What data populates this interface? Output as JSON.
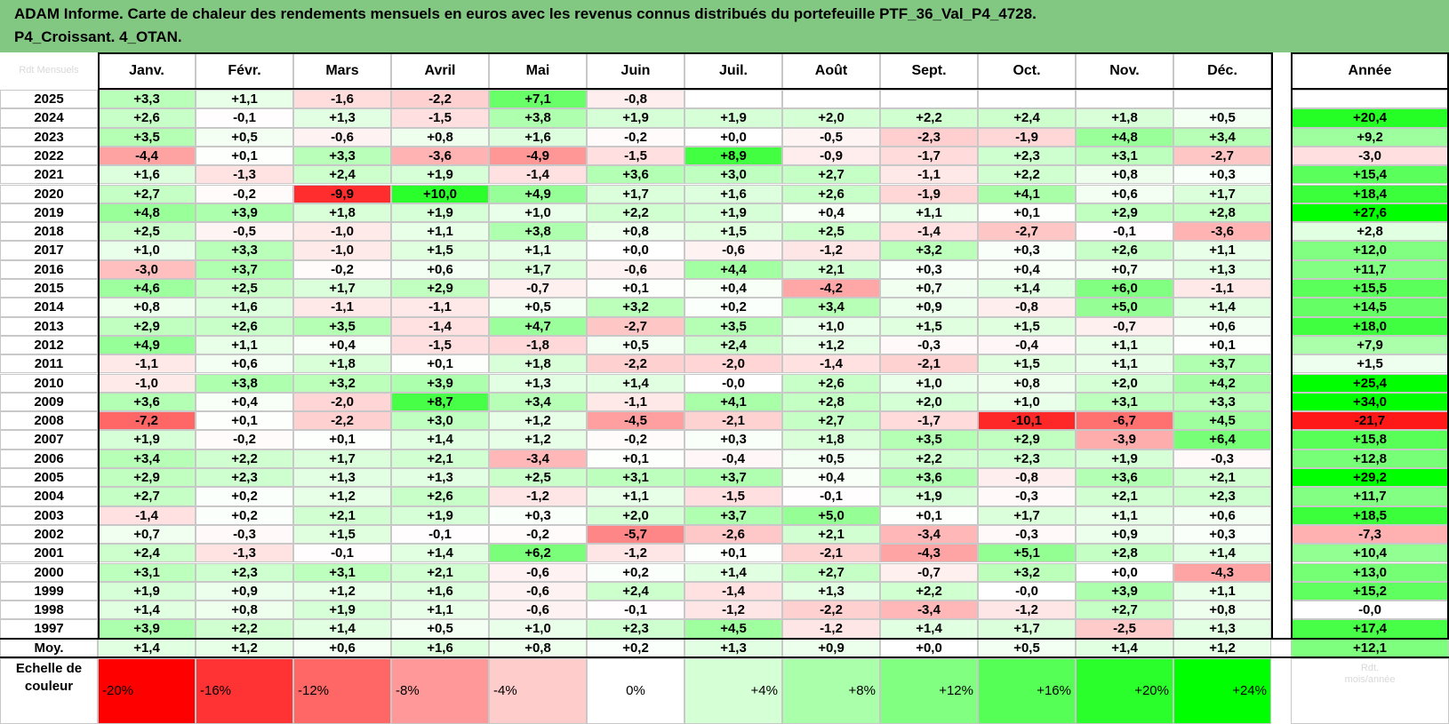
{
  "title": "ADAM Informe. Carte de chaleur des rendements mensuels en euros avec les revenus connus distribués du portefeuille PTF_36_Val_P4_4728.\nP4_Croissant. 4_OTAN.",
  "corner_label": "Rdt Mensuels",
  "months": [
    "Janv.",
    "Févr.",
    "Mars",
    "Avril",
    "Mai",
    "Juin",
    "Juil.",
    "Août",
    "Sept.",
    "Oct.",
    "Nov.",
    "Déc."
  ],
  "annual_header": "Année",
  "avg_label": "Moy.",
  "scale_label": "Echelle de\ncouleur",
  "scale_ghost": "Rdt.\nmois/année",
  "colors": {
    "title_bg": "#82c882",
    "negative": "#ff0000",
    "positive": "#00ff00",
    "neutral": "#ffffff"
  },
  "chart_data": {
    "type": "heatmap",
    "title": "ADAM Informe. Carte de chaleur des rendements mensuels en euros avec les revenus connus distribués du portefeuille PTF_36_Val_P4_4728. P4_Croissant. 4_OTAN.",
    "columns": [
      "Janv.",
      "Févr.",
      "Mars",
      "Avril",
      "Mai",
      "Juin",
      "Juil.",
      "Août",
      "Sept.",
      "Oct.",
      "Nov.",
      "Déc."
    ],
    "rows": [
      {
        "year": "2025",
        "months": [
          "+3,3",
          "+1,1",
          "-1,6",
          "-2,2",
          "+7,1",
          "-0,8",
          "",
          "",
          "",
          "",
          "",
          ""
        ],
        "annual": ""
      },
      {
        "year": "2024",
        "months": [
          "+2,6",
          "-0,1",
          "+1,3",
          "-1,5",
          "+3,8",
          "+1,9",
          "+1,9",
          "+2,0",
          "+2,2",
          "+2,4",
          "+1,8",
          "+0,5"
        ],
        "annual": "+20,4"
      },
      {
        "year": "2023",
        "months": [
          "+3,5",
          "+0,5",
          "-0,6",
          "+0,8",
          "+1,6",
          "-0,2",
          "+0,0",
          "-0,5",
          "-2,3",
          "-1,9",
          "+4,8",
          "+3,4"
        ],
        "annual": "+9,2"
      },
      {
        "year": "2022",
        "months": [
          "-4,4",
          "+0,1",
          "+3,3",
          "-3,6",
          "-4,9",
          "-1,5",
          "+8,9",
          "-0,9",
          "-1,7",
          "+2,3",
          "+3,1",
          "-2,7"
        ],
        "annual": "-3,0"
      },
      {
        "year": "2021",
        "months": [
          "+1,6",
          "-1,3",
          "+2,4",
          "+1,9",
          "-1,4",
          "+3,6",
          "+3,0",
          "+2,7",
          "-1,1",
          "+2,2",
          "+0,8",
          "+0,3"
        ],
        "annual": "+15,4"
      },
      {
        "year": "2020",
        "months": [
          "+2,7",
          "-0,2",
          "-9,9",
          "+10,0",
          "+4,9",
          "+1,7",
          "+1,6",
          "+2,6",
          "-1,9",
          "+4,1",
          "+0,6",
          "+1,7"
        ],
        "annual": "+18,4"
      },
      {
        "year": "2019",
        "months": [
          "+4,8",
          "+3,9",
          "+1,8",
          "+1,9",
          "+1,0",
          "+2,2",
          "+1,9",
          "+0,4",
          "+1,1",
          "+0,1",
          "+2,9",
          "+2,8"
        ],
        "annual": "+27,6"
      },
      {
        "year": "2018",
        "months": [
          "+2,5",
          "-0,5",
          "-1,0",
          "+1,1",
          "+3,8",
          "+0,8",
          "+1,5",
          "+2,5",
          "-1,4",
          "-2,7",
          "-0,1",
          "-3,6"
        ],
        "annual": "+2,8"
      },
      {
        "year": "2017",
        "months": [
          "+1,0",
          "+3,3",
          "-1,0",
          "+1,5",
          "+1,1",
          "+0,0",
          "-0,6",
          "-1,2",
          "+3,2",
          "+0,3",
          "+2,6",
          "+1,1"
        ],
        "annual": "+12,0"
      },
      {
        "year": "2016",
        "months": [
          "-3,0",
          "+3,7",
          "-0,2",
          "+0,6",
          "+1,7",
          "-0,6",
          "+4,4",
          "+2,1",
          "+0,3",
          "+0,4",
          "+0,7",
          "+1,3"
        ],
        "annual": "+11,7"
      },
      {
        "year": "2015",
        "months": [
          "+4,6",
          "+2,5",
          "+1,7",
          "+2,9",
          "-0,7",
          "+0,1",
          "+0,4",
          "-4,2",
          "+0,7",
          "+1,4",
          "+6,0",
          "-1,1"
        ],
        "annual": "+15,5"
      },
      {
        "year": "2014",
        "months": [
          "+0,8",
          "+1,6",
          "-1,1",
          "-1,1",
          "+0,5",
          "+3,2",
          "+0,2",
          "+3,4",
          "+0,9",
          "-0,8",
          "+5,0",
          "+1,4"
        ],
        "annual": "+14,5"
      },
      {
        "year": "2013",
        "months": [
          "+2,9",
          "+2,6",
          "+3,5",
          "-1,4",
          "+4,7",
          "-2,7",
          "+3,5",
          "+1,0",
          "+1,5",
          "+1,5",
          "-0,7",
          "+0,6"
        ],
        "annual": "+18,0"
      },
      {
        "year": "2012",
        "months": [
          "+4,9",
          "+1,1",
          "+0,4",
          "-1,5",
          "-1,8",
          "+0,5",
          "+2,4",
          "+1,2",
          "-0,3",
          "-0,4",
          "+1,1",
          "+0,1"
        ],
        "annual": "+7,9"
      },
      {
        "year": "2011",
        "months": [
          "-1,1",
          "+0,6",
          "+1,8",
          "+0,1",
          "+1,8",
          "-2,2",
          "-2,0",
          "-1,4",
          "-2,1",
          "+1,5",
          "+1,1",
          "+3,7"
        ],
        "annual": "+1,5"
      },
      {
        "year": "2010",
        "months": [
          "-1,0",
          "+3,8",
          "+3,2",
          "+3,9",
          "+1,3",
          "+1,4",
          "-0,0",
          "+2,6",
          "+1,0",
          "+0,8",
          "+2,0",
          "+4,2"
        ],
        "annual": "+25,4"
      },
      {
        "year": "2009",
        "months": [
          "+3,6",
          "+0,4",
          "-2,0",
          "+8,7",
          "+3,4",
          "-1,1",
          "+4,1",
          "+2,8",
          "+2,0",
          "+1,0",
          "+3,1",
          "+3,3"
        ],
        "annual": "+34,0"
      },
      {
        "year": "2008",
        "months": [
          "-7,2",
          "+0,1",
          "-2,2",
          "+3,0",
          "+1,2",
          "-4,5",
          "-2,1",
          "+2,7",
          "-1,7",
          "-10,1",
          "-6,7",
          "+4,5"
        ],
        "annual": "-21,7"
      },
      {
        "year": "2007",
        "months": [
          "+1,9",
          "-0,2",
          "+0,1",
          "+1,4",
          "+1,2",
          "-0,2",
          "+0,3",
          "+1,8",
          "+3,5",
          "+2,9",
          "-3,9",
          "+6,4"
        ],
        "annual": "+15,8"
      },
      {
        "year": "2006",
        "months": [
          "+3,4",
          "+2,2",
          "+1,7",
          "+2,1",
          "-3,4",
          "+0,1",
          "-0,4",
          "+0,5",
          "+2,2",
          "+2,3",
          "+1,9",
          "-0,3"
        ],
        "annual": "+12,8"
      },
      {
        "year": "2005",
        "months": [
          "+2,9",
          "+2,3",
          "+1,3",
          "+1,3",
          "+2,5",
          "+3,1",
          "+3,7",
          "+0,4",
          "+3,6",
          "-0,8",
          "+3,6",
          "+2,1"
        ],
        "annual": "+29,2"
      },
      {
        "year": "2004",
        "months": [
          "+2,7",
          "+0,2",
          "+1,2",
          "+2,6",
          "-1,2",
          "+1,1",
          "-1,5",
          "-0,1",
          "+1,9",
          "-0,3",
          "+2,1",
          "+2,3"
        ],
        "annual": "+11,7"
      },
      {
        "year": "2003",
        "months": [
          "-1,4",
          "+0,2",
          "+2,1",
          "+1,9",
          "+0,3",
          "+2,0",
          "+3,7",
          "+5,0",
          "+0,1",
          "+1,7",
          "+1,1",
          "+0,6"
        ],
        "annual": "+18,5"
      },
      {
        "year": "2002",
        "months": [
          "+0,7",
          "-0,3",
          "+1,5",
          "-0,1",
          "-0,2",
          "-5,7",
          "-2,6",
          "+2,1",
          "-3,4",
          "-0,3",
          "+0,9",
          "+0,3"
        ],
        "annual": "-7,3"
      },
      {
        "year": "2001",
        "months": [
          "+2,4",
          "-1,3",
          "-0,1",
          "+1,4",
          "+6,2",
          "-1,2",
          "+0,1",
          "-2,1",
          "-4,3",
          "+5,1",
          "+2,8",
          "+1,4"
        ],
        "annual": "+10,4"
      },
      {
        "year": "2000",
        "months": [
          "+3,1",
          "+2,3",
          "+3,1",
          "+2,1",
          "-0,6",
          "+0,2",
          "+1,4",
          "+2,7",
          "-0,7",
          "+3,2",
          "+0,0",
          "-4,3"
        ],
        "annual": "+13,0"
      },
      {
        "year": "1999",
        "months": [
          "+1,9",
          "+0,9",
          "+1,2",
          "+1,6",
          "-0,6",
          "+2,4",
          "-1,4",
          "+1,3",
          "+2,2",
          "-0,0",
          "+3,9",
          "+1,1"
        ],
        "annual": "+15,2"
      },
      {
        "year": "1998",
        "months": [
          "+1,4",
          "+0,8",
          "+1,9",
          "+1,1",
          "-0,6",
          "-0,1",
          "-1,2",
          "-2,2",
          "-3,4",
          "-1,2",
          "+2,7",
          "+0,8"
        ],
        "annual": "-0,0"
      },
      {
        "year": "1997",
        "months": [
          "+3,9",
          "+2,2",
          "+1,4",
          "+0,5",
          "+1,0",
          "+2,3",
          "+4,5",
          "-1,2",
          "+1,4",
          "+1,7",
          "-2,5",
          "+1,3"
        ],
        "annual": "+17,4"
      }
    ],
    "average": {
      "months": [
        "+1,4",
        "+1,2",
        "+0,6",
        "+1,6",
        "+0,8",
        "+0,2",
        "+1,3",
        "+0,9",
        "+0,0",
        "+0,5",
        "+1,4",
        "+1,2"
      ],
      "annual": "+12,1"
    },
    "color_scale": [
      "-20%",
      "-16%",
      "-12%",
      "-8%",
      "-4%",
      "0%",
      "+4%",
      "+8%",
      "+12%",
      "+16%",
      "+20%",
      "+24%"
    ],
    "color_scale_min": -20,
    "color_scale_max": 24
  }
}
